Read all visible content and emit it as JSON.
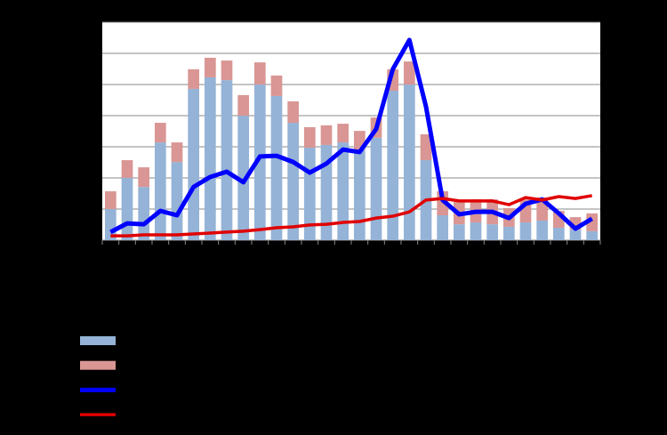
{
  "chart_data": {
    "type": "bar",
    "stacked": true,
    "categories": [
      null,
      null,
      null,
      null,
      null,
      null,
      null,
      null,
      null,
      null,
      null,
      null,
      null,
      null,
      null,
      null,
      null,
      null,
      null,
      null,
      null,
      null,
      null,
      null,
      null,
      null,
      null,
      null,
      null,
      null
    ],
    "series": [
      {
        "type": "bar",
        "color": "#95b3d7",
        "values": [
          1.0,
          2.0,
          1.71,
          3.14,
          2.51,
          4.86,
          5.23,
          5.14,
          4.0,
          5.0,
          4.63,
          3.77,
          2.97,
          3.06,
          3.14,
          2.91,
          3.29,
          4.8,
          5.0,
          2.57,
          0.8,
          0.51,
          0.57,
          0.51,
          0.43,
          0.57,
          0.63,
          0.4,
          0.34,
          0.29
        ]
      },
      {
        "type": "bar",
        "color": "#d99694",
        "values": [
          0.57,
          0.57,
          0.63,
          0.63,
          0.63,
          0.63,
          0.63,
          0.63,
          0.66,
          0.71,
          0.66,
          0.69,
          0.66,
          0.63,
          0.6,
          0.6,
          0.65,
          0.69,
          0.74,
          0.83,
          0.77,
          0.75,
          0.74,
          0.8,
          0.6,
          0.74,
          0.74,
          0.54,
          0.4,
          0.57
        ]
      },
      {
        "type": "line",
        "color": "#0000ff",
        "values": [
          0.26,
          0.54,
          0.51,
          0.94,
          0.8,
          1.71,
          2.03,
          2.2,
          1.86,
          2.69,
          2.71,
          2.51,
          2.17,
          2.46,
          2.91,
          2.83,
          3.57,
          5.49,
          6.43,
          4.29,
          1.29,
          0.83,
          0.91,
          0.91,
          0.71,
          1.17,
          1.31,
          0.86,
          0.37,
          0.69
        ]
      },
      {
        "type": "line",
        "color": "#e00000",
        "values": [
          0.14,
          0.14,
          0.17,
          0.17,
          0.17,
          0.2,
          0.23,
          0.26,
          0.29,
          0.34,
          0.4,
          0.43,
          0.49,
          0.51,
          0.57,
          0.6,
          0.71,
          0.77,
          0.91,
          1.29,
          1.34,
          1.26,
          1.26,
          1.26,
          1.14,
          1.37,
          1.29,
          1.4,
          1.34,
          1.43
        ]
      }
    ],
    "ylim": [
      0,
      7
    ],
    "yticks": [
      0,
      1,
      2,
      3,
      4,
      5,
      6,
      7
    ],
    "grid": true
  }
}
